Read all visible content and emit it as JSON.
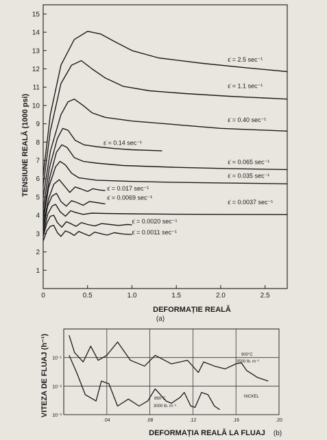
{
  "chart_data": [
    {
      "type": "line",
      "panel_label": "(a)",
      "xlabel": "DEFORMAȚIE REALĂ",
      "ylabel": "TENSIUNE REALĂ (1000 psi)",
      "xlim": [
        0,
        2.75
      ],
      "ylim": [
        0,
        15.5
      ],
      "x_ticks": [
        "0",
        "0.5",
        "1.0",
        "1.5",
        "2.0",
        "2.5"
      ],
      "y_ticks": [
        "1",
        "2",
        "3",
        "4",
        "5",
        "6",
        "7",
        "8",
        "9",
        "10",
        "11",
        "12",
        "13",
        "14",
        "15"
      ],
      "grid": false,
      "series": [
        {
          "name": "ε̇ = 2.5 sec⁻¹",
          "label_at": [
            2.08,
            12.4
          ],
          "points": [
            [
              0,
              6.2
            ],
            [
              0.08,
              9.5
            ],
            [
              0.2,
              12.2
            ],
            [
              0.35,
              13.6
            ],
            [
              0.5,
              14.05
            ],
            [
              0.65,
              13.9
            ],
            [
              0.8,
              13.5
            ],
            [
              1.0,
              13.0
            ],
            [
              1.3,
              12.6
            ],
            [
              1.8,
              12.3
            ],
            [
              2.3,
              12.05
            ],
            [
              2.75,
              11.85
            ]
          ]
        },
        {
          "name": "ε̇ = 1.1 sec⁻¹",
          "label_at": [
            2.08,
            10.95
          ],
          "points": [
            [
              0,
              5.6
            ],
            [
              0.08,
              8.6
            ],
            [
              0.2,
              11.2
            ],
            [
              0.32,
              12.2
            ],
            [
              0.43,
              12.45
            ],
            [
              0.55,
              12.0
            ],
            [
              0.7,
              11.5
            ],
            [
              0.9,
              11.05
            ],
            [
              1.2,
              10.8
            ],
            [
              1.6,
              10.65
            ],
            [
              2.1,
              10.5
            ],
            [
              2.75,
              10.35
            ]
          ]
        },
        {
          "name": "ε̇ = 0.40 sec⁻¹",
          "label_at": [
            2.08,
            9.1
          ],
          "points": [
            [
              0,
              5.0
            ],
            [
              0.08,
              7.5
            ],
            [
              0.2,
              9.5
            ],
            [
              0.28,
              10.2
            ],
            [
              0.35,
              10.35
            ],
            [
              0.45,
              10.0
            ],
            [
              0.55,
              9.6
            ],
            [
              0.7,
              9.35
            ],
            [
              1.0,
              9.15
            ],
            [
              1.5,
              8.95
            ],
            [
              2.0,
              8.75
            ],
            [
              2.75,
              8.6
            ]
          ]
        },
        {
          "name": "ε̇ = 0.14 sec⁻¹",
          "label_at": [
            0.68,
            7.85
          ],
          "points": [
            [
              0,
              4.4
            ],
            [
              0.07,
              6.6
            ],
            [
              0.16,
              8.2
            ],
            [
              0.22,
              8.75
            ],
            [
              0.28,
              8.65
            ],
            [
              0.36,
              8.1
            ],
            [
              0.46,
              7.85
            ],
            [
              0.6,
              7.75
            ],
            [
              0.8,
              7.65
            ],
            [
              1.0,
              7.58
            ],
            [
              1.34,
              7.52
            ]
          ]
        },
        {
          "name": "ε̇ = 0.065 sec⁻¹",
          "label_at": [
            2.08,
            6.8
          ],
          "points": [
            [
              0,
              4.0
            ],
            [
              0.07,
              6.0
            ],
            [
              0.15,
              7.45
            ],
            [
              0.21,
              7.85
            ],
            [
              0.27,
              7.7
            ],
            [
              0.35,
              7.15
            ],
            [
              0.45,
              6.95
            ],
            [
              0.6,
              6.85
            ],
            [
              0.9,
              6.72
            ],
            [
              1.5,
              6.62
            ],
            [
              2.1,
              6.55
            ],
            [
              2.75,
              6.5
            ]
          ]
        },
        {
          "name": "ε̇ = 0.035 sec⁻¹",
          "label_at": [
            2.08,
            6.05
          ],
          "points": [
            [
              0,
              3.7
            ],
            [
              0.06,
              5.5
            ],
            [
              0.14,
              6.65
            ],
            [
              0.19,
              6.95
            ],
            [
              0.25,
              6.75
            ],
            [
              0.32,
              6.3
            ],
            [
              0.4,
              6.05
            ],
            [
              0.6,
              5.92
            ],
            [
              1.0,
              5.85
            ],
            [
              1.5,
              5.8
            ],
            [
              2.0,
              5.77
            ],
            [
              2.75,
              5.72
            ]
          ]
        },
        {
          "name": "ε̇ = 0.017 sec⁻¹",
          "label_at": [
            0.72,
            5.35
          ],
          "points": [
            [
              0,
              3.45
            ],
            [
              0.06,
              4.9
            ],
            [
              0.12,
              5.7
            ],
            [
              0.18,
              5.95
            ],
            [
              0.24,
              5.6
            ],
            [
              0.3,
              5.25
            ],
            [
              0.36,
              5.55
            ],
            [
              0.42,
              5.45
            ],
            [
              0.5,
              5.3
            ],
            [
              0.56,
              5.45
            ],
            [
              0.64,
              5.38
            ],
            [
              0.7,
              5.35
            ]
          ]
        },
        {
          "name": "ε̇ = 0.0069 sec⁻¹",
          "label_at": [
            0.72,
            4.85
          ],
          "points": [
            [
              0,
              3.2
            ],
            [
              0.05,
              4.5
            ],
            [
              0.1,
              5.05
            ],
            [
              0.15,
              5.2
            ],
            [
              0.2,
              4.75
            ],
            [
              0.26,
              4.5
            ],
            [
              0.32,
              4.8
            ],
            [
              0.38,
              4.7
            ],
            [
              0.45,
              4.55
            ],
            [
              0.52,
              4.75
            ],
            [
              0.6,
              4.7
            ],
            [
              0.7,
              4.62
            ]
          ]
        },
        {
          "name": "ε̇ = 0.0037 sec⁻¹",
          "label_at": [
            2.08,
            4.6
          ],
          "points": [
            [
              0,
              3.0
            ],
            [
              0.05,
              4.05
            ],
            [
              0.1,
              4.5
            ],
            [
              0.14,
              4.6
            ],
            [
              0.19,
              4.2
            ],
            [
              0.25,
              3.95
            ],
            [
              0.31,
              4.25
            ],
            [
              0.37,
              4.15
            ],
            [
              0.45,
              4.05
            ],
            [
              0.55,
              4.12
            ],
            [
              0.7,
              4.1
            ],
            [
              1.0,
              4.08
            ],
            [
              1.5,
              4.06
            ],
            [
              2.0,
              4.05
            ],
            [
              2.75,
              4.04
            ]
          ]
        },
        {
          "name": "ε̇ = 0.0020 sec⁻¹",
          "label_at": [
            1.0,
            3.55
          ],
          "points": [
            [
              0,
              2.85
            ],
            [
              0.04,
              3.55
            ],
            [
              0.08,
              3.95
            ],
            [
              0.12,
              4.0
            ],
            [
              0.16,
              3.6
            ],
            [
              0.21,
              3.35
            ],
            [
              0.26,
              3.65
            ],
            [
              0.31,
              3.55
            ],
            [
              0.37,
              3.4
            ],
            [
              0.43,
              3.6
            ],
            [
              0.5,
              3.5
            ],
            [
              0.58,
              3.42
            ],
            [
              0.66,
              3.55
            ],
            [
              0.75,
              3.5
            ],
            [
              0.85,
              3.45
            ],
            [
              0.95,
              3.5
            ],
            [
              1.0,
              3.48
            ]
          ]
        },
        {
          "name": "ε̇ = 0.0011 sec⁻¹",
          "label_at": [
            1.0,
            2.95
          ],
          "points": [
            [
              0,
              2.6
            ],
            [
              0.04,
              3.15
            ],
            [
              0.08,
              3.4
            ],
            [
              0.12,
              3.45
            ],
            [
              0.16,
              3.05
            ],
            [
              0.2,
              2.85
            ],
            [
              0.25,
              3.15
            ],
            [
              0.3,
              3.05
            ],
            [
              0.35,
              2.9
            ],
            [
              0.4,
              3.12
            ],
            [
              0.46,
              3.0
            ],
            [
              0.52,
              2.88
            ],
            [
              0.58,
              3.08
            ],
            [
              0.65,
              3.0
            ],
            [
              0.72,
              2.92
            ],
            [
              0.8,
              3.05
            ],
            [
              0.9,
              2.98
            ],
            [
              1.0,
              2.95
            ]
          ]
        }
      ]
    },
    {
      "type": "line",
      "panel_label": "(b)",
      "xlabel": "DEFORMAȚIA REALĂ LA FLUAJ",
      "ylabel": "VITEZA DE FLUAJ (h⁻¹)",
      "xlim": [
        0,
        0.2
      ],
      "y_scale": "log",
      "ylim": [
        0.001,
        1
      ],
      "x_ticks": [
        ".04",
        ".08",
        ".12",
        ".16",
        ".20"
      ],
      "y_ticks": [
        "10⁻³",
        "10⁻²",
        "10⁻¹"
      ],
      "grid": true,
      "annotations": [
        "900°C",
        "3500 lb. m⁻²",
        "NICKEL",
        "860°C",
        "3000 lb. m⁻²"
      ],
      "series": [
        {
          "name": "900°C, 3500 lb. m⁻²",
          "points": [
            [
              0.005,
              0.6
            ],
            [
              0.01,
              0.15
            ],
            [
              0.018,
              0.07
            ],
            [
              0.025,
              0.25
            ],
            [
              0.032,
              0.08
            ],
            [
              0.04,
              0.12
            ],
            [
              0.05,
              0.35
            ],
            [
              0.062,
              0.08
            ],
            [
              0.075,
              0.05
            ],
            [
              0.085,
              0.12
            ],
            [
              0.1,
              0.06
            ],
            [
              0.115,
              0.08
            ],
            [
              0.125,
              0.03
            ],
            [
              0.13,
              0.07
            ],
            [
              0.14,
              0.05
            ],
            [
              0.15,
              0.04
            ],
            [
              0.16,
              0.06
            ],
            [
              0.165,
              0.065
            ],
            [
              0.17,
              0.035
            ],
            [
              0.18,
              0.02
            ],
            [
              0.19,
              0.015
            ]
          ]
        },
        {
          "name": "860°C, 3000 lb. m⁻²",
          "points": [
            [
              0.005,
              0.12
            ],
            [
              0.012,
              0.03
            ],
            [
              0.02,
              0.005
            ],
            [
              0.03,
              0.003
            ],
            [
              0.035,
              0.015
            ],
            [
              0.042,
              0.012
            ],
            [
              0.05,
              0.002
            ],
            [
              0.06,
              0.0035
            ],
            [
              0.07,
              0.002
            ],
            [
              0.078,
              0.003
            ],
            [
              0.085,
              0.008
            ],
            [
              0.095,
              0.003
            ],
            [
              0.1,
              0.0025
            ],
            [
              0.108,
              0.004
            ],
            [
              0.112,
              0.006
            ],
            [
              0.118,
              0.002
            ],
            [
              0.122,
              0.0018
            ],
            [
              0.128,
              0.006
            ],
            [
              0.134,
              0.005
            ],
            [
              0.14,
              0.002
            ],
            [
              0.145,
              0.0015
            ]
          ]
        }
      ]
    }
  ]
}
